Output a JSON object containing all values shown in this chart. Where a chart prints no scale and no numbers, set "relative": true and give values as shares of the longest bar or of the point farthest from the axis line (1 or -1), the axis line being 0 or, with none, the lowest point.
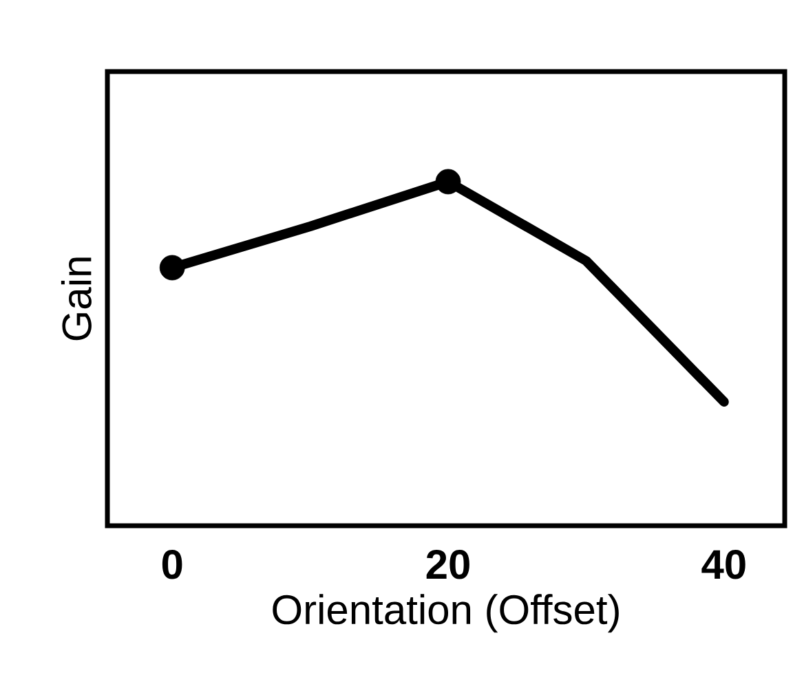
{
  "chart_data": {
    "type": "line",
    "xlabel": "Orientation (Offset)",
    "ylabel": "Gain",
    "relative": true,
    "x": [
      0,
      10,
      20,
      30,
      40
    ],
    "xlim": [
      -4.7,
      44.4
    ],
    "xticks": [
      0,
      20,
      40
    ],
    "grid": false,
    "series": [
      {
        "color": "#000000",
        "values": [
          0.75,
          0.87,
          1.0,
          0.77,
          0.36
        ],
        "marker": "none"
      },
      {
        "type": "scatter",
        "color": "#000000",
        "x": [
          0,
          20
        ],
        "values": [
          0.75,
          1.0
        ],
        "marker": "circle"
      }
    ]
  }
}
